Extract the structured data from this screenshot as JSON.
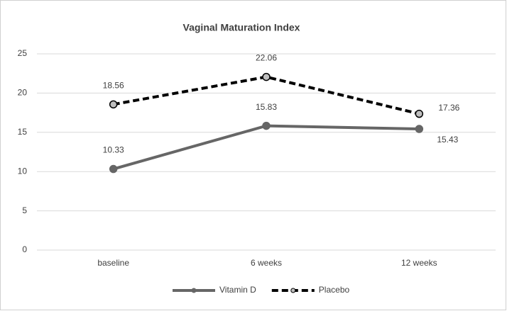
{
  "chart_data": {
    "type": "line",
    "title": "Vaginal Maturation Index",
    "categories": [
      "baseline",
      "6 weeks",
      "12 weeks"
    ],
    "series": [
      {
        "name": "Vitamin D",
        "color": "#666666",
        "values": [
          10.33,
          15.83,
          15.43
        ]
      },
      {
        "name": "Placebo",
        "color": "#000000",
        "values": [
          18.56,
          22.06,
          17.36
        ]
      }
    ],
    "ylim": [
      0,
      25
    ],
    "yticks": [
      0,
      5,
      10,
      15,
      20,
      25
    ],
    "grid": true,
    "legend": "bottom"
  }
}
